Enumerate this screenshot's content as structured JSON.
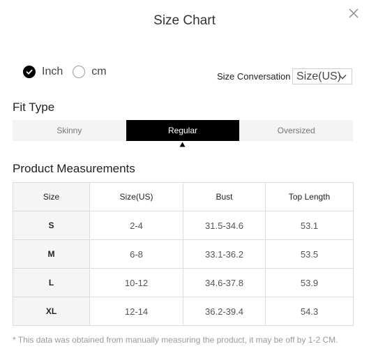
{
  "dialog": {
    "title": "Size Chart"
  },
  "units": {
    "options": [
      {
        "label": "Inch",
        "checked": true
      },
      {
        "label": "cm",
        "checked": false
      }
    ]
  },
  "conversion": {
    "label": "Size Conversation",
    "selected": "Size(US)"
  },
  "fit_type": {
    "title": "Fit Type",
    "tabs": [
      {
        "label": "Skinny",
        "active": false
      },
      {
        "label": "Regular",
        "active": true
      },
      {
        "label": "Oversized",
        "active": false
      }
    ]
  },
  "measurements": {
    "title": "Product Measurements",
    "headers": [
      "Size",
      "Size(US)",
      "Bust",
      "Top Length"
    ],
    "rows": [
      [
        "S",
        "2-4",
        "31.5-34.6",
        "53.1"
      ],
      [
        "M",
        "6-8",
        "33.1-36.2",
        "53.5"
      ],
      [
        "L",
        "10-12",
        "34.6-37.8",
        "53.9"
      ],
      [
        "XL",
        "12-14",
        "36.2-39.4",
        "54.3"
      ]
    ]
  },
  "note": "* This data was obtained from manually measuring the product, it may be off by 1-2 CM.",
  "icons": {
    "close": "close-icon",
    "check": "check-icon",
    "chevron": "chevron-down-icon",
    "caret": "caret-up-icon"
  }
}
